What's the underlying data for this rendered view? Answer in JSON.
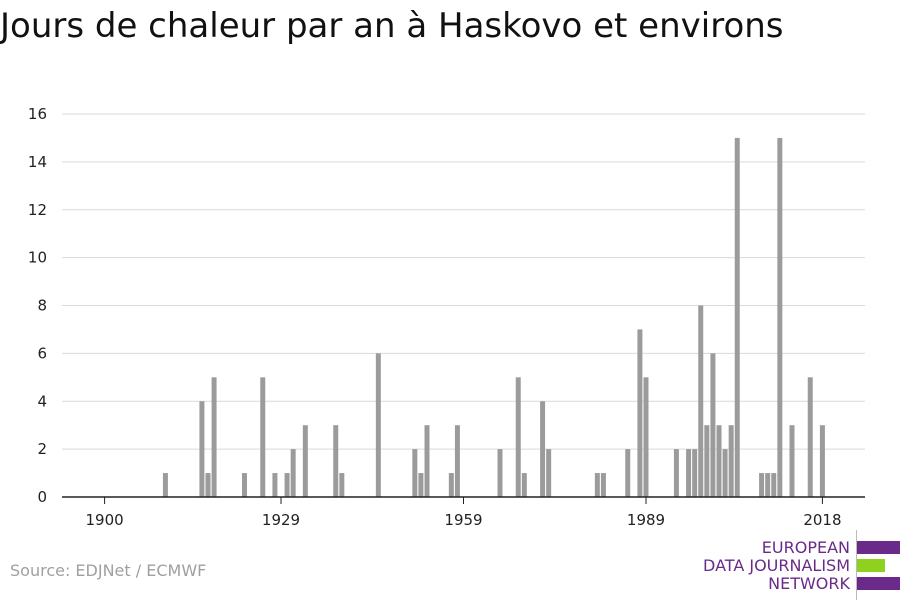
{
  "title": "Jours de chaleur par an à Haskovo et environs",
  "source": "Source: EDJNet / ECMWF",
  "logo": {
    "line1": "EUROPEAN",
    "line2": "DATA JOURNALISM",
    "line3": "NETWORK",
    "colors": {
      "purple": "#6a2a8a",
      "green": "#8ed11f"
    }
  },
  "colors": {
    "bar": "#9b9b9b",
    "grid": "#d9d9d9",
    "axis": "#222222"
  },
  "chart_data": {
    "type": "bar",
    "title": "Jours de chaleur par an à Haskovo et environs",
    "xlabel": "",
    "ylabel": "",
    "ylim": [
      0,
      16
    ],
    "yticks": [
      0,
      2,
      4,
      6,
      8,
      10,
      12,
      14,
      16
    ],
    "xticks": [
      1900,
      1929,
      1959,
      1989,
      2018
    ],
    "xlim": [
      1893,
      2025
    ],
    "grid": true,
    "x": [
      1910,
      1916,
      1917,
      1918,
      1923,
      1926,
      1928,
      1930,
      1931,
      1933,
      1938,
      1939,
      1945,
      1951,
      1952,
      1953,
      1957,
      1958,
      1965,
      1968,
      1969,
      1972,
      1973,
      1981,
      1982,
      1986,
      1988,
      1989,
      1994,
      1996,
      1997,
      1998,
      1999,
      2000,
      2001,
      2002,
      2003,
      2004,
      2008,
      2009,
      2010,
      2011,
      2013,
      2016,
      2018
    ],
    "values": [
      1,
      4,
      1,
      5,
      1,
      5,
      1,
      1,
      2,
      3,
      3,
      1,
      6,
      2,
      1,
      3,
      1,
      3,
      2,
      5,
      1,
      4,
      2,
      1,
      1,
      2,
      7,
      5,
      2,
      2,
      2,
      8,
      3,
      6,
      3,
      2,
      3,
      15,
      1,
      1,
      1,
      15,
      3,
      5,
      3
    ]
  }
}
